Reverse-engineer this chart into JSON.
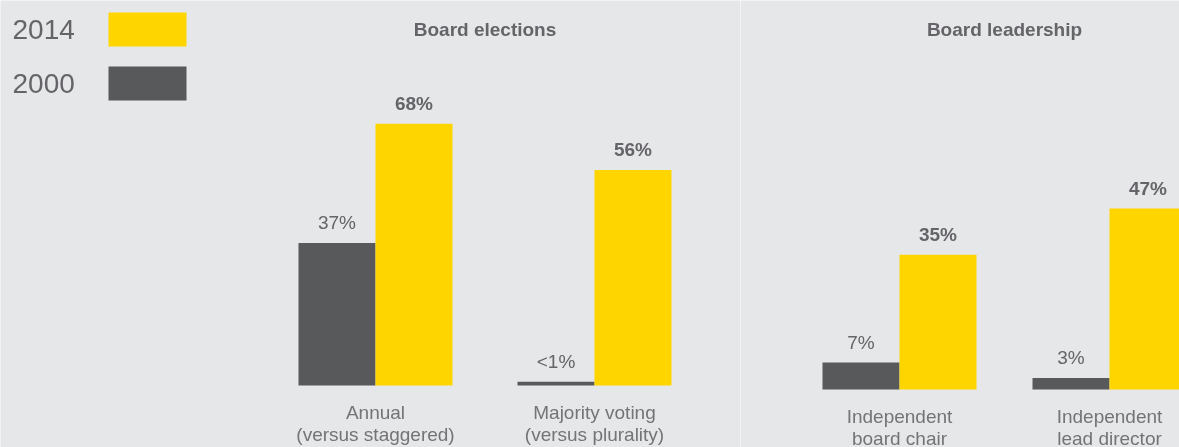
{
  "chart_data": [
    {
      "type": "bar",
      "title": "Board elections",
      "categories": [
        "Annual\n(versus staggered)",
        "Majority voting\n(versus plurality)"
      ],
      "legend": "top left",
      "series": [
        {
          "name": "2000",
          "color": "#58595b",
          "values": [
            37,
            1
          ],
          "value_labels": [
            "37%",
            "<1%"
          ]
        },
        {
          "name": "2014",
          "color": "#ffd500",
          "values": [
            68,
            56
          ],
          "value_labels": [
            "68%",
            "56%"
          ]
        }
      ]
    },
    {
      "type": "bar",
      "title": "Board leadership",
      "categories": [
        "Independent\nboard chair",
        "Independent\nlead director"
      ],
      "series": [
        {
          "color": "#58595b",
          "values": [
            7,
            3
          ],
          "value_labels": [
            "7%",
            "3%"
          ]
        },
        {
          "color": "#ffd500",
          "values": [
            35,
            47
          ],
          "value_labels": [
            "35%",
            "47%"
          ]
        }
      ]
    }
  ]
}
